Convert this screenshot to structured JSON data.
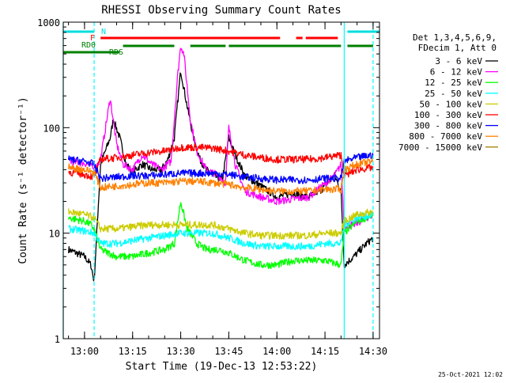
{
  "chart_data": {
    "type": "line",
    "title": "RHESSI Observing Summary Count Rates",
    "xlabel": "Start Time (19-Dec-13 12:53:22)",
    "ylabel": "Count Rate (s⁻¹ detector⁻¹)",
    "y_scale": "log",
    "ylim": [
      1,
      1000
    ],
    "xlim": [
      "12:53:22",
      "14:32:00"
    ],
    "x_ticks": [
      "13:00",
      "13:15",
      "13:30",
      "13:45",
      "14:00",
      "14:15",
      "14:30"
    ],
    "y_ticks": [
      "1",
      "10",
      "100",
      "1000"
    ],
    "legend_header": [
      "Det 1,3,4,5,6,9,",
      "FDecim 1, Att 0"
    ],
    "legend_position": "right",
    "timestamp": "25-Oct-2021 12:02",
    "flags": [
      {
        "label": "N",
        "color": "#00dddd",
        "segments": [
          [
            "12:53:22",
            "13:03"
          ],
          [
            "14:22",
            "14:32"
          ]
        ]
      },
      {
        "label": "F",
        "color": "#ff0000",
        "segments": [
          [
            "13:05",
            "14:01"
          ],
          [
            "14:06",
            "14:08"
          ],
          [
            "14:09",
            "14:19"
          ]
        ]
      },
      {
        "label": "RD0",
        "color": "#008000",
        "segments": [
          [
            "12:53:22",
            "13:11"
          ]
        ]
      },
      {
        "label": "RDS",
        "color": "#008000",
        "segments": [
          [
            "13:12",
            "13:28"
          ],
          [
            "13:33",
            "13:44"
          ],
          [
            "13:45",
            "14:20"
          ],
          [
            "14:22",
            "14:30"
          ]
        ]
      }
    ],
    "vlines": [
      {
        "time": "12:53:22",
        "color": "#00ffff",
        "style": "solid"
      },
      {
        "time": "13:03",
        "color": "#00ffff",
        "style": "dashed"
      },
      {
        "time": "14:21",
        "color": "#00ffff",
        "style": "solid"
      },
      {
        "time": "14:30",
        "color": "#00ffff",
        "style": "dashed"
      }
    ],
    "series": [
      {
        "name": "3 - 6 keV",
        "color": "#000000",
        "x": [
          "12:55",
          "13:00",
          "13:02",
          "13:03",
          "13:05",
          "13:08",
          "13:09",
          "13:11",
          "13:13",
          "13:15",
          "13:18",
          "13:21",
          "13:24",
          "13:26",
          "13:28",
          "13:30",
          "13:32",
          "13:34",
          "13:36",
          "13:38",
          "13:40",
          "13:43",
          "13:45",
          "13:47",
          "13:50",
          "13:55",
          "14:00",
          "14:05",
          "14:10",
          "14:14",
          "14:18",
          "14:20",
          "14:21",
          "14:24",
          "14:28",
          "14:30"
        ],
        "y": [
          7,
          6,
          5,
          3.5,
          45,
          80,
          120,
          80,
          45,
          38,
          45,
          40,
          40,
          50,
          80,
          350,
          160,
          80,
          50,
          40,
          35,
          32,
          80,
          55,
          35,
          28,
          22,
          24,
          22,
          26,
          35,
          25,
          5,
          6,
          8,
          9
        ]
      },
      {
        "name": "6 - 12 keV",
        "color": "#ff00ff",
        "x": [
          "12:55",
          "13:00",
          "13:02",
          "13:03",
          "13:05",
          "13:08",
          "13:10",
          "13:12",
          "13:15",
          "13:18",
          "13:21",
          "13:24",
          "13:27",
          "13:29",
          "13:30",
          "13:31",
          "13:33",
          "13:35",
          "13:38",
          "13:42",
          "13:44",
          "13:45",
          "13:47",
          "13:50",
          "13:55",
          "14:00",
          "14:05",
          "14:10",
          "14:14",
          "14:18",
          "14:20",
          "14:21",
          "14:24",
          "14:28",
          "14:30"
        ],
        "y": [
          48,
          46,
          44,
          40,
          50,
          190,
          70,
          45,
          40,
          55,
          45,
          40,
          48,
          300,
          600,
          500,
          120,
          60,
          40,
          35,
          30,
          100,
          45,
          25,
          22,
          20,
          21,
          22,
          28,
          35,
          45,
          12,
          12,
          14,
          15
        ]
      },
      {
        "name": "12 - 25 keV",
        "color": "#00ff00",
        "x": [
          "12:55",
          "13:00",
          "13:02",
          "13:03",
          "13:05",
          "13:10",
          "13:15",
          "13:20",
          "13:25",
          "13:28",
          "13:30",
          "13:32",
          "13:35",
          "13:38",
          "13:42",
          "13:45",
          "13:50",
          "13:55",
          "14:00",
          "14:05",
          "14:10",
          "14:15",
          "14:20",
          "14:21",
          "14:25",
          "14:30"
        ],
        "y": [
          14,
          13,
          12,
          11,
          7,
          6,
          6,
          6.5,
          7,
          8,
          20,
          11,
          8,
          7,
          7,
          6.5,
          5.5,
          5,
          5,
          5.5,
          5.5,
          5.5,
          5,
          10,
          13,
          15
        ]
      },
      {
        "name": "25 - 50 keV",
        "color": "#00ffff",
        "x": [
          "12:55",
          "13:00",
          "13:03",
          "13:05",
          "13:10",
          "13:15",
          "13:20",
          "13:25",
          "13:30",
          "13:35",
          "13:40",
          "13:45",
          "13:50",
          "13:55",
          "14:00",
          "14:05",
          "14:10",
          "14:15",
          "14:20",
          "14:21",
          "14:25",
          "14:30"
        ],
        "y": [
          11,
          10.5,
          10,
          8,
          8,
          8.5,
          9,
          9.5,
          10,
          10,
          10,
          9,
          8,
          7.5,
          7.5,
          7.5,
          7.5,
          8,
          8,
          12,
          14,
          15
        ]
      },
      {
        "name": "50 - 100 keV",
        "color": "#cccc00",
        "x": [
          "12:55",
          "13:00",
          "13:03",
          "13:05",
          "13:10",
          "13:15",
          "13:20",
          "13:25",
          "13:30",
          "13:35",
          "13:40",
          "13:45",
          "13:50",
          "13:55",
          "14:00",
          "14:05",
          "14:10",
          "14:15",
          "14:20",
          "14:21",
          "14:25",
          "14:30"
        ],
        "y": [
          16,
          15,
          14,
          11,
          11,
          11.5,
          12,
          12,
          12,
          12,
          12,
          11,
          10,
          9.5,
          9.5,
          9.5,
          9.5,
          10,
          10,
          13,
          15,
          16
        ]
      },
      {
        "name": "100 - 300 keV",
        "color": "#ff0000",
        "x": [
          "12:55",
          "13:00",
          "13:03",
          "13:05",
          "13:10",
          "13:15",
          "13:20",
          "13:25",
          "13:30",
          "13:35",
          "13:40",
          "13:45",
          "13:50",
          "13:55",
          "14:00",
          "14:05",
          "14:10",
          "14:15",
          "14:20",
          "14:21",
          "14:25",
          "14:30"
        ],
        "y": [
          38,
          36,
          34,
          50,
          52,
          55,
          58,
          60,
          65,
          65,
          64,
          60,
          55,
          52,
          50,
          50,
          50,
          52,
          55,
          35,
          40,
          42
        ]
      },
      {
        "name": "300 - 800 keV",
        "color": "#0000ff",
        "x": [
          "12:55",
          "13:00",
          "13:03",
          "13:05",
          "13:10",
          "13:15",
          "13:20",
          "13:25",
          "13:30",
          "13:35",
          "13:40",
          "13:45",
          "13:50",
          "13:55",
          "14:00",
          "14:05",
          "14:10",
          "14:15",
          "14:20",
          "14:21",
          "14:25",
          "14:30"
        ],
        "y": [
          50,
          48,
          45,
          33,
          34,
          35,
          35,
          36,
          37,
          37,
          37,
          36,
          34,
          33,
          32,
          32,
          32,
          33,
          33,
          48,
          52,
          55
        ]
      },
      {
        "name": "800 - 7000 keV",
        "color": "#ff8000",
        "x": [
          "12:55",
          "13:00",
          "13:03",
          "13:05",
          "13:10",
          "13:15",
          "13:20",
          "13:25",
          "13:30",
          "13:35",
          "13:40",
          "13:45",
          "13:50",
          "13:55",
          "14:00",
          "14:05",
          "14:10",
          "14:15",
          "14:20",
          "14:21",
          "14:25",
          "14:30"
        ],
        "y": [
          42,
          40,
          38,
          27,
          28,
          29,
          30,
          30,
          31,
          31,
          30,
          29,
          27,
          26,
          25,
          25,
          25,
          26,
          26,
          40,
          45,
          48
        ]
      },
      {
        "name": "7000 - 15000 keV",
        "color": "#a08000",
        "x": [],
        "y": []
      }
    ]
  }
}
